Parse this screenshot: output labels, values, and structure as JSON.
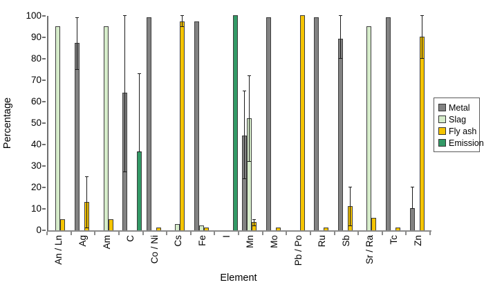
{
  "chart_data": {
    "type": "bar",
    "title": "",
    "xlabel": "Element",
    "ylabel": "Percentage",
    "ylim": [
      0,
      100
    ],
    "ytick_step": 10,
    "grid": false,
    "legend_position": "right",
    "categories": [
      "An / Ln",
      "Ag",
      "Am",
      "C",
      "Co / Ni",
      "Cs",
      "Fe",
      "I",
      "Mn",
      "Mo",
      "Pb / Po",
      "Ru",
      "Sb",
      "Sr / Ra",
      "Tc",
      "Zn"
    ],
    "series": [
      {
        "name": "Metal",
        "color": "#828282",
        "values": [
          null,
          87,
          null,
          64,
          99,
          null,
          97,
          null,
          44,
          99,
          null,
          99,
          89,
          null,
          99,
          10
        ],
        "errors": [
          null,
          [
            75,
            99
          ],
          null,
          [
            27,
            100
          ],
          null,
          null,
          null,
          null,
          [
            24,
            65
          ],
          null,
          null,
          null,
          [
            80,
            100
          ],
          null,
          null,
          [
            10,
            20
          ]
        ]
      },
      {
        "name": "Slag",
        "color": "#d6ecca",
        "values": [
          95,
          null,
          95,
          null,
          null,
          2.5,
          2,
          null,
          52,
          null,
          null,
          null,
          null,
          95,
          null,
          null
        ],
        "errors": [
          null,
          null,
          null,
          null,
          null,
          null,
          null,
          null,
          [
            32,
            72
          ],
          null,
          null,
          null,
          null,
          null,
          null,
          null
        ]
      },
      {
        "name": "Fly ash",
        "color": "#f5c400",
        "values": [
          5,
          13,
          5,
          null,
          1,
          97,
          1,
          null,
          3.5,
          1,
          100,
          1,
          11,
          5.5,
          1,
          90
        ],
        "errors": [
          null,
          [
            1,
            25
          ],
          null,
          null,
          null,
          [
            95,
            100
          ],
          null,
          null,
          [
            2,
            5
          ],
          null,
          null,
          null,
          [
            2,
            20
          ],
          null,
          null,
          [
            80,
            100
          ]
        ]
      },
      {
        "name": "Emission",
        "color": "#339966",
        "values": [
          null,
          null,
          null,
          36.5,
          null,
          null,
          null,
          100,
          null,
          null,
          null,
          null,
          null,
          null,
          null,
          null
        ],
        "errors": [
          null,
          null,
          null,
          [
            36.5,
            73
          ],
          null,
          null,
          null,
          null,
          null,
          null,
          null,
          null,
          null,
          null,
          null,
          null
        ]
      }
    ]
  }
}
